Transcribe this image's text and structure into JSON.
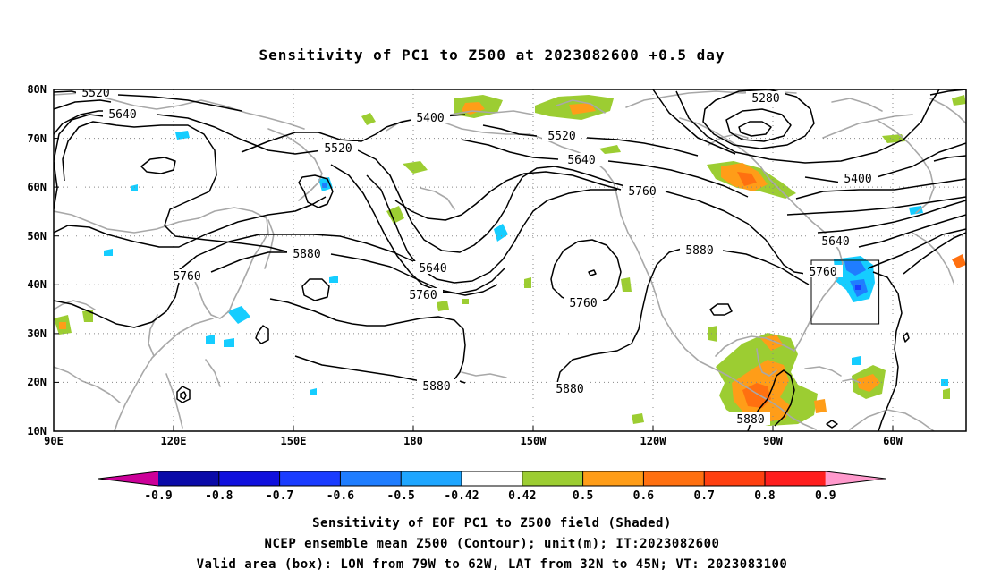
{
  "title": "Sensitivity of PC1 to Z500 at 2023082600 +0.5 day",
  "lat_labels": [
    "80N",
    "70N",
    "60N",
    "50N",
    "40N",
    "30N",
    "20N",
    "10N"
  ],
  "lon_labels": [
    "90E",
    "120E",
    "150E",
    "180",
    "150W",
    "120W",
    "90W",
    "60W"
  ],
  "contour_labels": [
    "5520",
    "5640",
    "5400",
    "5280",
    "5520",
    "5520",
    "5640",
    "5760",
    "5400",
    "5640",
    "5760",
    "5880",
    "5760",
    "5880",
    "5640",
    "5760",
    "5760",
    "5880",
    "5880",
    "5880"
  ],
  "colorbar": {
    "labels": [
      "-0.9",
      "-0.8",
      "-0.7",
      "-0.6",
      "-0.5",
      "-0.42",
      "0.42",
      "0.5",
      "0.6",
      "0.7",
      "0.8",
      "0.9"
    ],
    "colors": [
      "#cc0099",
      "#0a0aa8",
      "#1010dd",
      "#1a3cff",
      "#1f7dff",
      "#1ea6ff",
      "#15cdff",
      "#ffffff",
      "#9ccd32",
      "#ff9d18",
      "#ff7010",
      "#ff4010",
      "#ff1e1e",
      "#ff99cc"
    ]
  },
  "footer": {
    "line1": "Sensitivity of EOF PC1 to Z500 field (Shaded)",
    "line2": "NCEP ensemble mean Z500 (Contour); unit(m); IT:2023082600",
    "line3": "Valid area (box): LON from 79W to 62W, LAT from 32N to 45N; VT: 2023083100"
  }
}
